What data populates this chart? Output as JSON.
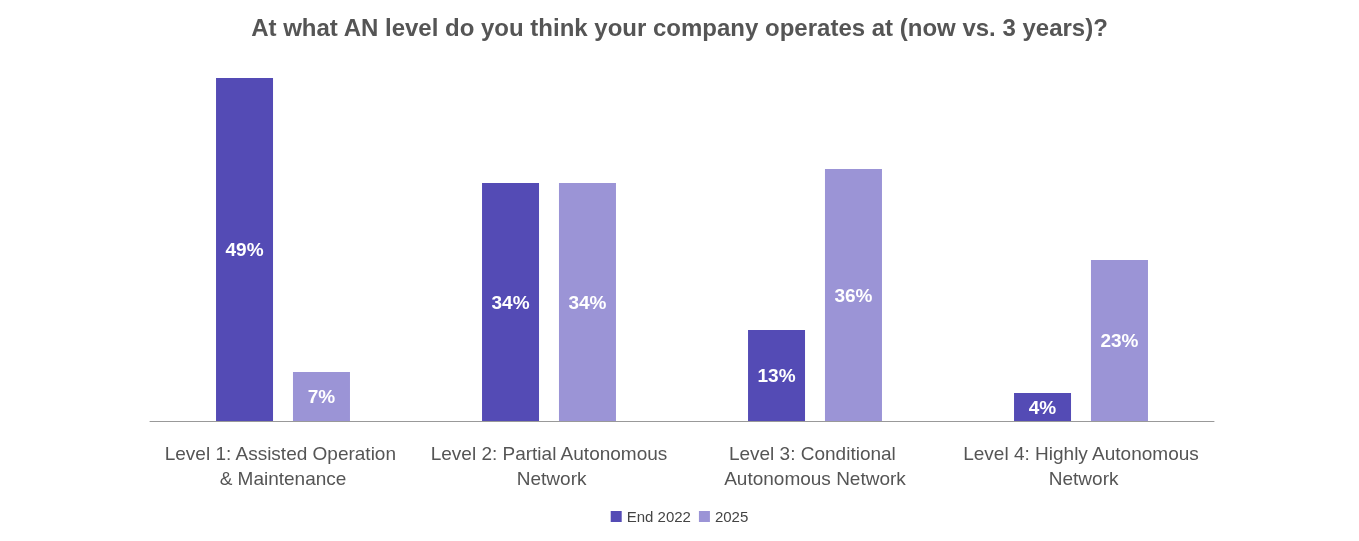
{
  "chart_data": {
    "type": "bar",
    "title": "At what AN level do you think your company operates at (now vs. 3 years)?",
    "categories": [
      "Level 1: Assisted Operation & Maintenance",
      "Level 2: Partial Autonomous Network",
      "Level 3: Conditional Autonomous Network",
      "Level 4: Highly Autonomous Network"
    ],
    "series": [
      {
        "name": "End 2022",
        "color": "#544bb5",
        "values": [
          49,
          34,
          13,
          4
        ],
        "value_labels": [
          "49%",
          "34%",
          "13%",
          "4%"
        ]
      },
      {
        "name": "2025",
        "color": "#9b94d6",
        "values": [
          7,
          34,
          36,
          23
        ],
        "value_labels": [
          "7%",
          "34%",
          "36%",
          "23%"
        ]
      }
    ],
    "legend": "bottom"
  }
}
